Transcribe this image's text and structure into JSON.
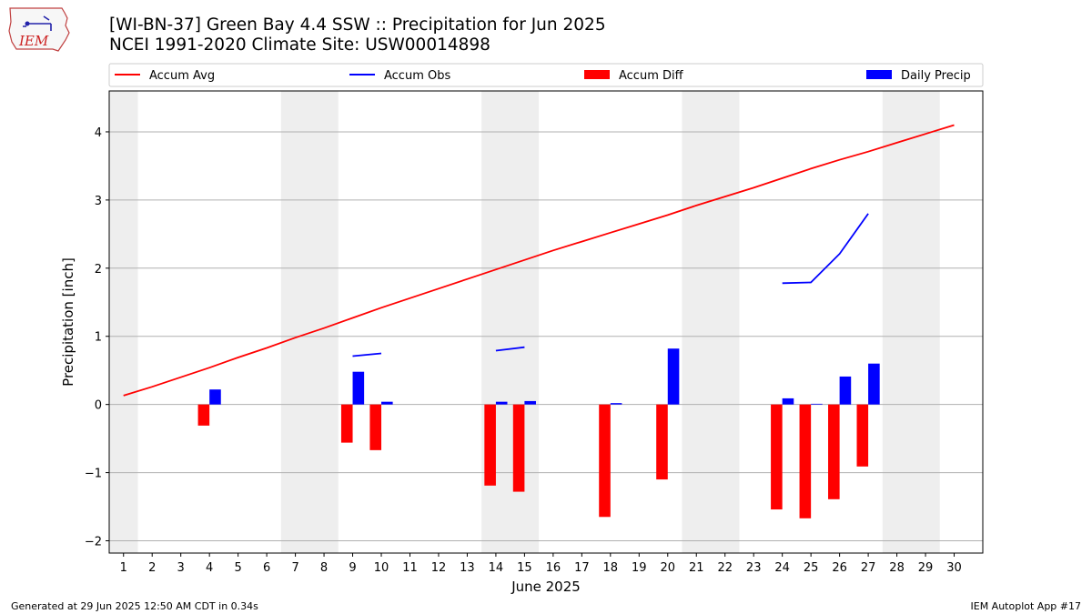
{
  "header": {
    "title": "[WI-BN-37] Green Bay 4.4 SSW :: Precipitation for Jun 2025",
    "subtitle": "NCEI 1991-2020 Climate Site: USW00014898",
    "logo_text": "IEM"
  },
  "footer": {
    "generated": "Generated at 29 Jun 2025 12:50 AM CDT in 0.34s",
    "app": "IEM Autoplot App #17"
  },
  "colors": {
    "avg": "#ff0000",
    "obs": "#0000ff",
    "diff": "#ff0000",
    "daily": "#0000ff",
    "weekend_band": "#eeeeee",
    "grid": "#b0b0b0"
  },
  "chart_data": {
    "type": "bar",
    "xlabel": "June 2025",
    "ylabel": "Precipitation [inch]",
    "xlim": [
      0.5,
      31
    ],
    "ylim": [
      -2.18,
      4.6
    ],
    "yticks": [
      -2,
      -1,
      0,
      1,
      2,
      3,
      4
    ],
    "ytick_labels": [
      "−2",
      "−1",
      "0",
      "1",
      "2",
      "3",
      "4"
    ],
    "xticks": [
      1,
      2,
      3,
      4,
      5,
      6,
      7,
      8,
      9,
      10,
      11,
      12,
      13,
      14,
      15,
      16,
      17,
      18,
      19,
      20,
      21,
      22,
      23,
      24,
      25,
      26,
      27,
      28,
      29,
      30
    ],
    "grid": "horizontal",
    "legend_position": "top",
    "legend": [
      {
        "label": "Accum Avg",
        "kind": "line",
        "color": "#ff0000"
      },
      {
        "label": "Accum Obs",
        "kind": "line",
        "color": "#0000ff"
      },
      {
        "label": "Accum Diff",
        "kind": "bar",
        "color": "#ff0000"
      },
      {
        "label": "Daily Precip",
        "kind": "bar",
        "color": "#0000ff"
      }
    ],
    "weekend_bands": [
      [
        0.5,
        1.5
      ],
      [
        6.5,
        8.5
      ],
      [
        13.5,
        15.5
      ],
      [
        20.5,
        22.5
      ],
      [
        27.5,
        29.5
      ]
    ],
    "series": [
      {
        "name": "Accum Avg",
        "kind": "line",
        "x": [
          1,
          2,
          3,
          4,
          5,
          6,
          7,
          8,
          9,
          10,
          11,
          12,
          13,
          14,
          15,
          16,
          17,
          18,
          19,
          20,
          21,
          22,
          23,
          24,
          25,
          26,
          27,
          28,
          29,
          30
        ],
        "values": [
          0.13,
          0.26,
          0.4,
          0.54,
          0.69,
          0.83,
          0.98,
          1.12,
          1.27,
          1.42,
          1.56,
          1.7,
          1.84,
          1.98,
          2.12,
          2.26,
          2.39,
          2.52,
          2.65,
          2.78,
          2.92,
          3.05,
          3.18,
          3.32,
          3.46,
          3.59,
          3.71,
          3.84,
          3.97,
          4.1
        ]
      },
      {
        "name": "Accum Obs",
        "kind": "line",
        "segments": [
          {
            "x": [
              9,
              10
            ],
            "values": [
              0.71,
              0.75
            ]
          },
          {
            "x": [
              14,
              15
            ],
            "values": [
              0.79,
              0.84
            ]
          },
          {
            "x": [
              24,
              25,
              26,
              27
            ],
            "values": [
              1.78,
              1.79,
              2.21,
              2.8
            ]
          }
        ]
      },
      {
        "name": "Accum Diff",
        "kind": "bar",
        "x": [
          4,
          9,
          10,
          14,
          15,
          18,
          20,
          24,
          25,
          26,
          27
        ],
        "values": [
          -0.31,
          -0.56,
          -0.67,
          -1.19,
          -1.28,
          -1.65,
          -1.1,
          -1.54,
          -1.67,
          -1.39,
          -0.91
        ]
      },
      {
        "name": "Daily Precip",
        "kind": "bar",
        "x": [
          4,
          9,
          10,
          14,
          15,
          18,
          20,
          24,
          25,
          26,
          27
        ],
        "values": [
          0.22,
          0.48,
          0.04,
          0.04,
          0.05,
          0.02,
          0.82,
          0.09,
          0.01,
          0.41,
          0.6
        ]
      }
    ]
  }
}
